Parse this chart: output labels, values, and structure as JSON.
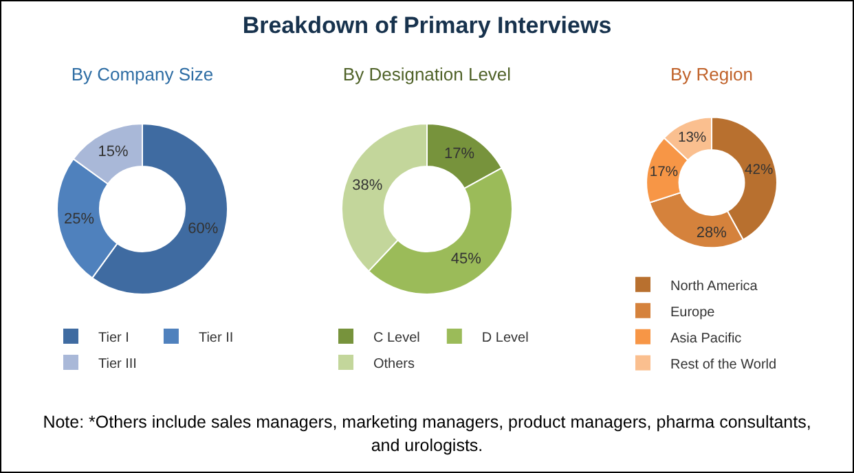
{
  "chart_data": [
    {
      "type": "other",
      "title": "Breakdown of Primary Interviews",
      "annotations": [
        "Note: *Others include sales managers, marketing managers, product managers, pharma consultants, and urologists."
      ]
    },
    {
      "type": "donut",
      "title": "By Company Size",
      "categories": [
        "Tier I",
        "Tier II",
        "Tier III"
      ],
      "values": [
        60,
        25,
        15
      ],
      "value_labels": [
        "60%",
        "25%",
        "15%"
      ],
      "colors": [
        "#3f6ba1",
        "#4f81bd",
        "#a9b8d8"
      ],
      "legend": "bottom"
    },
    {
      "type": "donut",
      "title": "By Designation Level",
      "categories": [
        "C Level",
        "D Level",
        "Others"
      ],
      "values": [
        17,
        45,
        38
      ],
      "value_labels": [
        "17%",
        "45%",
        "38%"
      ],
      "colors": [
        "#77933c",
        "#9bbb59",
        "#c3d69b"
      ],
      "legend": "bottom"
    },
    {
      "type": "donut",
      "title": "By Region",
      "categories": [
        "North America",
        "Europe",
        "Asia Pacific",
        "Rest of the World"
      ],
      "values": [
        42,
        28,
        17,
        13
      ],
      "value_labels": [
        "42%",
        "28%",
        "17%",
        "13%"
      ],
      "colors": [
        "#b8702f",
        "#d5823c",
        "#f79646",
        "#fabf8f"
      ],
      "legend": "bottom"
    }
  ]
}
